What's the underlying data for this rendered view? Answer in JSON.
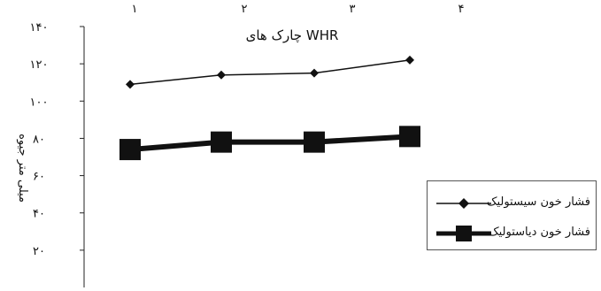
{
  "chart_data": {
    "type": "line",
    "title": "چارک های WHR",
    "xlabel": "چارک های WHR",
    "ylabel": "میلی متر جیوه",
    "categories": [
      "۱",
      "۲",
      "۳",
      "۴"
    ],
    "ylim": [
      0,
      140
    ],
    "yticks": [
      "۱۴۰",
      "۱۲۰",
      "۱۰۰",
      "۸۰",
      "۶۰",
      "۴۰",
      "۲۰"
    ],
    "ytick_values": [
      140,
      120,
      100,
      80,
      60,
      40,
      20
    ],
    "grid": false,
    "legend_position": "right",
    "series": [
      {
        "name": "فشار خون سیستولیک",
        "values": [
          109,
          114,
          115,
          122
        ],
        "color": "#111111",
        "marker": "diamond"
      },
      {
        "name": "فشار خون دیاستولیک",
        "values": [
          74,
          78,
          78,
          81
        ],
        "color": "#111111",
        "marker": "square"
      }
    ]
  }
}
